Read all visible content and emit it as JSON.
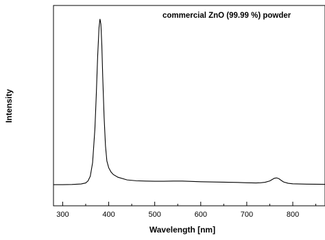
{
  "chart_data": {
    "type": "line",
    "title": "",
    "annotation": "commercial ZnO (99.99 %) powder",
    "xlabel": "Wavelength [nm]",
    "ylabel": "Intensity",
    "xlim": [
      280,
      870
    ],
    "ylim": [
      0,
      1.08
    ],
    "x_ticks": [
      300,
      400,
      500,
      600,
      700,
      800
    ],
    "x_tick_labels": [
      "300",
      "400",
      "500",
      "600",
      "700",
      "800"
    ],
    "y_ticks_shown": false,
    "grid": false,
    "series": [
      {
        "x": [
          280,
          300,
          320,
          340,
          350,
          355,
          360,
          365,
          370,
          373,
          376,
          379,
          381,
          383,
          385,
          387,
          390,
          393,
          396,
          400,
          405,
          410,
          420,
          440,
          460,
          480,
          500,
          520,
          540,
          560,
          580,
          600,
          620,
          640,
          660,
          680,
          700,
          720,
          730,
          740,
          750,
          755,
          760,
          765,
          770,
          775,
          780,
          790,
          800,
          830,
          870
        ],
        "y": [
          0.02,
          0.02,
          0.021,
          0.024,
          0.03,
          0.042,
          0.07,
          0.15,
          0.35,
          0.55,
          0.78,
          0.95,
          1.0,
          0.97,
          0.85,
          0.66,
          0.42,
          0.25,
          0.16,
          0.12,
          0.095,
          0.08,
          0.064,
          0.048,
          0.043,
          0.041,
          0.04,
          0.04,
          0.041,
          0.041,
          0.039,
          0.037,
          0.036,
          0.035,
          0.034,
          0.033,
          0.031,
          0.03,
          0.031,
          0.034,
          0.042,
          0.05,
          0.058,
          0.06,
          0.055,
          0.045,
          0.036,
          0.028,
          0.025,
          0.023,
          0.022
        ]
      }
    ]
  }
}
